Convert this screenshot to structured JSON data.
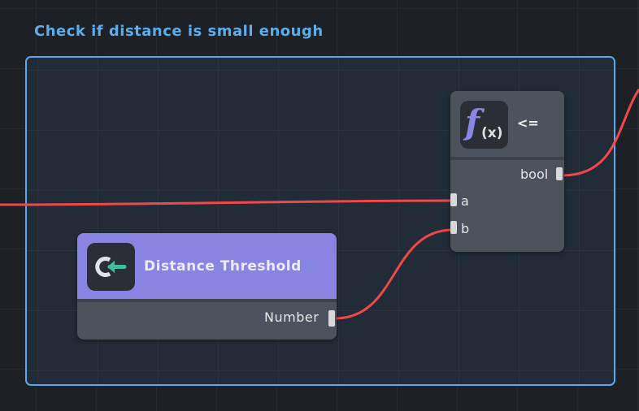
{
  "group": {
    "title": "Check if distance is small enough",
    "border_color": "#5aa9ee"
  },
  "compare_node": {
    "title": "<=",
    "icon": "function-fx-icon",
    "outputs": [
      "bool"
    ],
    "inputs": [
      "a",
      "b"
    ]
  },
  "threshold_node": {
    "title": "Distance Threshold",
    "icon": "variable-get-icon",
    "header_color": "#8884e2",
    "outputs": [
      "Number"
    ]
  },
  "wire_color": "#f04848"
}
